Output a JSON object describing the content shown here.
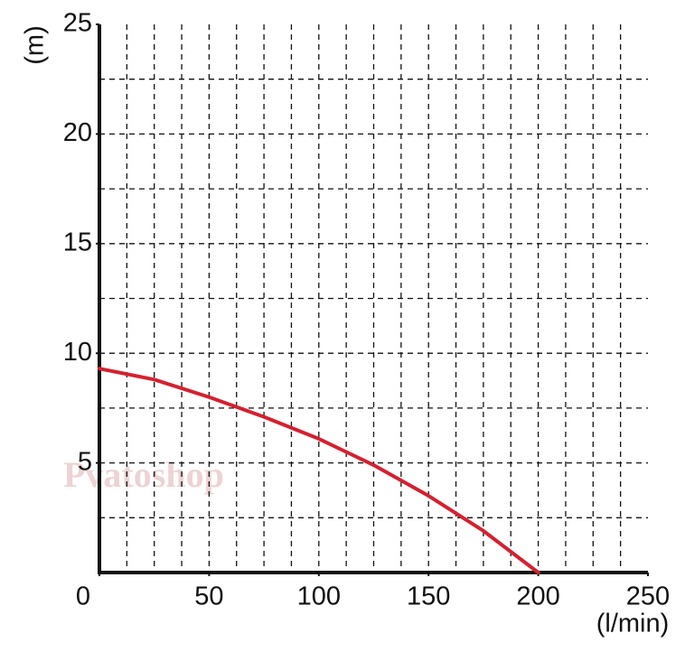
{
  "chart_data": {
    "type": "line",
    "x_label": "(l/min)",
    "y_label": "(m)",
    "watermark": "Pvatoshop",
    "x": [
      0,
      25,
      50,
      75,
      100,
      125,
      150,
      175,
      200
    ],
    "series": [
      {
        "color": "#d6202f",
        "values": [
          9.3,
          8.8,
          8.0,
          7.1,
          6.1,
          4.9,
          3.5,
          1.9,
          0
        ]
      }
    ],
    "xlim": [
      0,
      250
    ],
    "ylim": [
      0,
      25
    ],
    "xticks": [
      0,
      50,
      100,
      150,
      200,
      250
    ],
    "yticks": [
      5,
      10,
      15,
      20,
      25
    ],
    "xgrid": [
      12.5,
      25,
      37.5,
      50,
      62.5,
      75,
      87.5,
      100,
      112.5,
      125,
      137.5,
      150,
      162.5,
      175,
      187.5,
      200,
      212.5,
      225,
      237.5
    ],
    "ygrid": [
      2.5,
      5,
      7.5,
      10,
      12.5,
      15,
      17.5,
      20,
      22.5
    ],
    "grid": true
  }
}
